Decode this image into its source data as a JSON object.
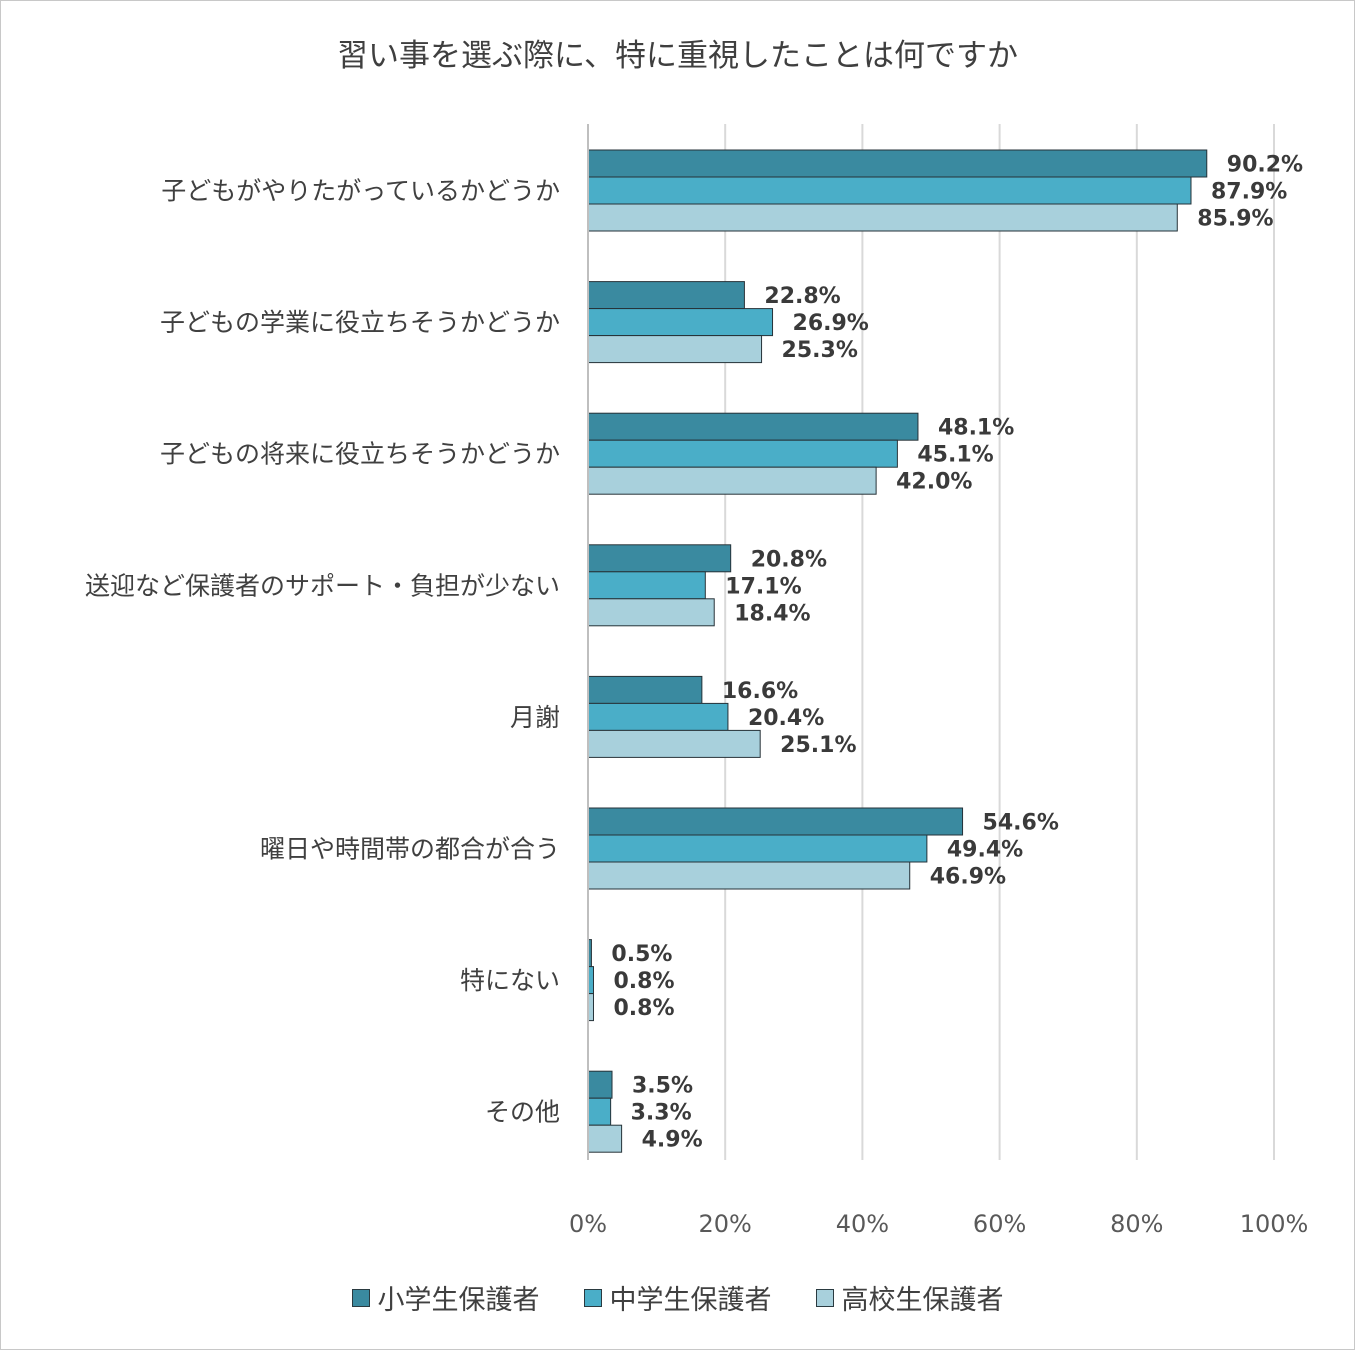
{
  "chart_data": {
    "type": "bar",
    "orientation": "horizontal",
    "title": "習い事を選ぶ際に、特に重視したことは何ですか",
    "categories": [
      "子どもがやりたがっているかどうか",
      "子どもの学業に役立ちそうかどうか",
      "子どもの将来に役立ちそうかどうか",
      "送迎など保護者のサポート・負担が少ない",
      "月謝",
      "曜日や時間帯の都合が合う",
      "特にない",
      "その他"
    ],
    "series": [
      {
        "name": "小学生保護者",
        "color": "#3a8aa0",
        "values": [
          90.2,
          22.8,
          48.1,
          20.8,
          16.6,
          54.6,
          0.5,
          3.5
        ],
        "labels": [
          "90.2%",
          "22.8%",
          "48.1%",
          "20.8%",
          "16.6%",
          "54.6%",
          "0.5%",
          "3.5%"
        ]
      },
      {
        "name": "中学生保護者",
        "color": "#4aaec8",
        "values": [
          87.9,
          26.9,
          45.1,
          17.1,
          20.4,
          49.4,
          0.8,
          3.3
        ],
        "labels": [
          "87.9%",
          "26.9%",
          "45.1%",
          "17.1%",
          "20.4%",
          "49.4%",
          "0.8%",
          "3.3%"
        ]
      },
      {
        "name": "高校生保護者",
        "color": "#a8d0dc",
        "values": [
          85.9,
          25.3,
          42.0,
          18.4,
          25.1,
          46.9,
          0.8,
          4.9
        ],
        "labels": [
          "85.9%",
          "25.3%",
          "42.0%",
          "18.4%",
          "25.1%",
          "46.9%",
          "0.8%",
          "4.9%"
        ]
      }
    ],
    "xlim": [
      0,
      100
    ],
    "xticks": [
      "0%",
      "20%",
      "40%",
      "60%",
      "80%",
      "100%"
    ],
    "grid": true,
    "legend_position": "bottom"
  }
}
